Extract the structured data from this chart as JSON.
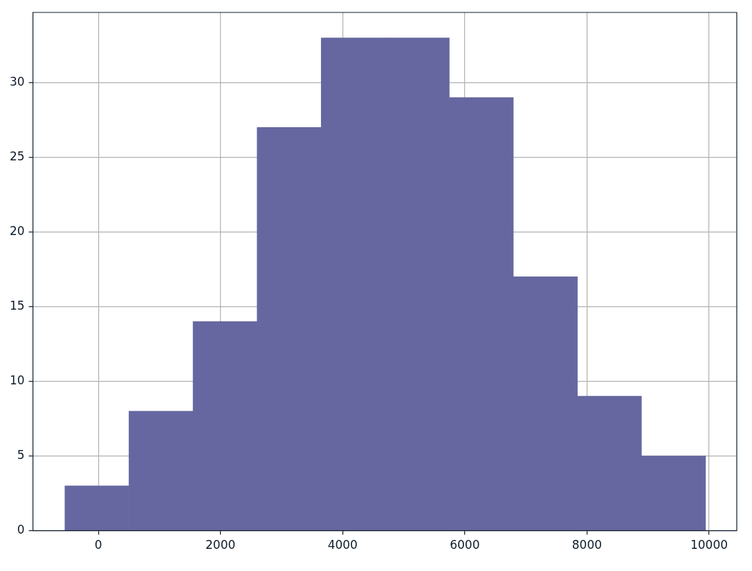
{
  "chart_data": {
    "type": "histogram",
    "bins": [
      -547,
      502,
      1551,
      2600,
      3649,
      4698,
      5746,
      6795,
      7844,
      8893,
      9942
    ],
    "values": [
      3,
      8,
      14,
      27,
      33,
      33,
      29,
      17,
      9,
      5
    ],
    "color": "#6667a0",
    "xlim": [
      -1070,
      10453
    ],
    "xticks": [
      0,
      2000,
      4000,
      6000,
      8000,
      10000
    ],
    "ylim": [
      0,
      34.7
    ],
    "yticks": [
      0,
      5,
      10,
      15,
      20,
      25,
      30
    ],
    "grid": true
  }
}
